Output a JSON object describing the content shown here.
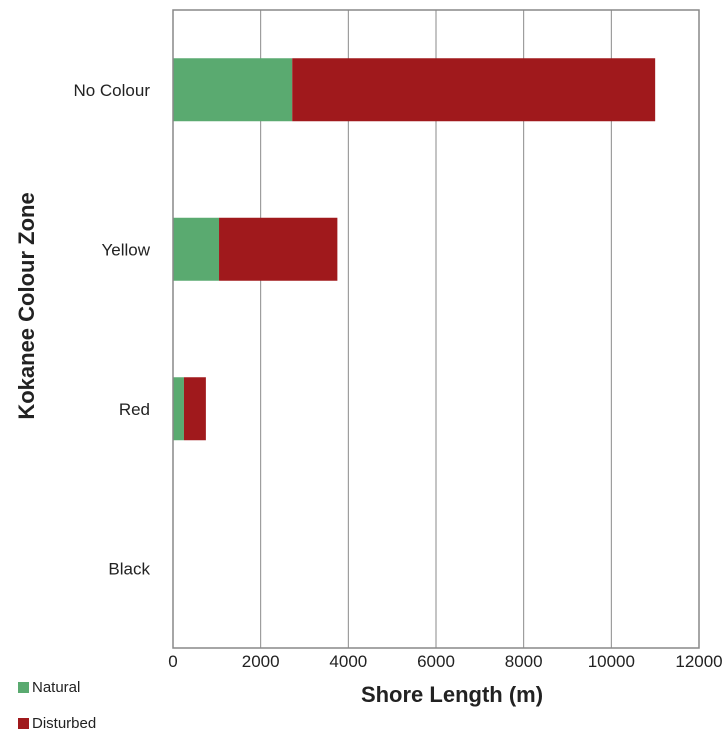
{
  "chart_data": {
    "type": "bar",
    "orientation": "horizontal",
    "stacked": true,
    "categories": [
      "No Colour",
      "Yellow",
      "Red",
      "Black"
    ],
    "series": [
      {
        "name": "Natural",
        "color": "#5aaa70",
        "values": [
          2720,
          1050,
          250,
          0
        ]
      },
      {
        "name": "Disturbed",
        "color": "#a0191c",
        "values": [
          8280,
          2700,
          500,
          0
        ]
      }
    ],
    "xlabel": "Shore Length (m)",
    "ylabel": "Kokanee Colour Zone",
    "xlim": [
      0,
      12000
    ],
    "xticks": [
      "0",
      "2000",
      "4000",
      "6000",
      "8000",
      "10000",
      "12000"
    ],
    "grid": "vertical",
    "legend_position": "bottom-left"
  }
}
